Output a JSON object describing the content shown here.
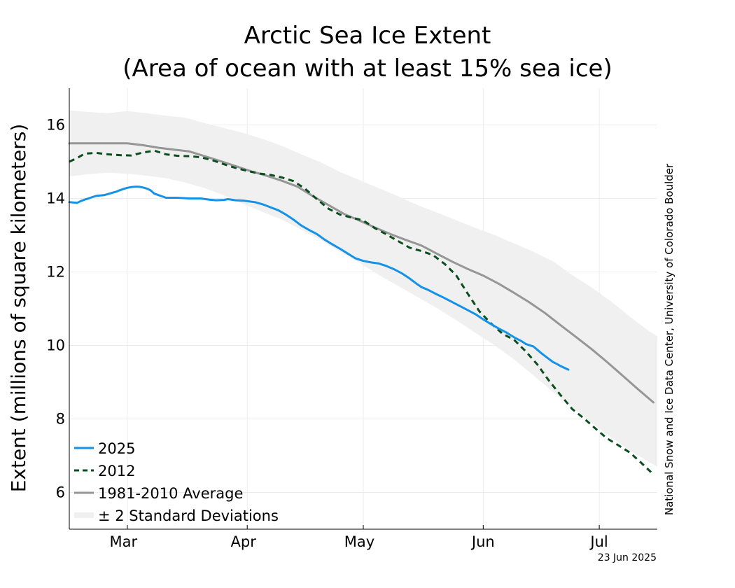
{
  "chart_data": {
    "type": "line",
    "title": [
      "Arctic Sea Ice Extent",
      "(Area of ocean with at least 15% sea ice)"
    ],
    "ylabel": "Extent (millions of square kilometers)",
    "ylim": [
      5,
      17
    ],
    "yticks": [
      6,
      8,
      10,
      12,
      14,
      16
    ],
    "x_unit": "day of year",
    "xlim": [
      45,
      197
    ],
    "month_starts": [
      60,
      91,
      121,
      152,
      182
    ],
    "month_labels": [
      "Mar",
      "Apr",
      "May",
      "Jun",
      "Jul"
    ],
    "month_label_days": [
      59,
      90,
      120,
      152,
      182
    ],
    "grid": true,
    "legend_position": "lower-left",
    "series": [
      {
        "name": "2025",
        "style": "solid",
        "color": "#1492e8",
        "x": [
          45,
          46,
          47,
          48,
          49,
          50,
          51,
          52,
          53,
          54,
          55,
          56,
          57,
          58,
          59,
          60,
          61,
          62,
          63,
          64,
          65,
          66,
          67,
          70,
          73,
          76,
          77,
          79,
          81,
          83,
          85,
          86,
          88,
          90,
          93,
          95,
          97,
          99,
          101,
          103,
          105,
          107,
          109,
          111,
          113,
          115,
          117,
          119,
          121,
          123,
          125,
          127,
          129,
          131,
          133,
          135,
          136,
          138,
          140,
          142,
          144,
          146,
          148,
          150,
          152,
          154,
          156,
          158,
          160,
          162,
          163,
          165,
          166,
          167,
          168,
          169,
          170,
          171,
          172,
          173,
          174
        ],
        "y": [
          13.9,
          13.89,
          13.88,
          13.93,
          13.97,
          14.0,
          14.04,
          14.07,
          14.08,
          14.09,
          14.12,
          14.15,
          14.18,
          14.22,
          14.26,
          14.29,
          14.31,
          14.32,
          14.32,
          14.3,
          14.27,
          14.22,
          14.13,
          14.02,
          14.02,
          14.0,
          14.0,
          14.0,
          13.97,
          13.95,
          13.96,
          13.98,
          13.95,
          13.94,
          13.9,
          13.84,
          13.76,
          13.68,
          13.56,
          13.42,
          13.26,
          13.14,
          13.03,
          12.88,
          12.75,
          12.63,
          12.5,
          12.37,
          12.3,
          12.26,
          12.23,
          12.16,
          12.07,
          11.96,
          11.82,
          11.66,
          11.59,
          11.5,
          11.39,
          11.29,
          11.18,
          11.07,
          10.96,
          10.85,
          10.71,
          10.58,
          10.46,
          10.35,
          10.22,
          10.11,
          10.04,
          9.97,
          9.88,
          9.79,
          9.71,
          9.63,
          9.55,
          9.5,
          9.44,
          9.39,
          9.34
        ],
        "gap_x": [
          122,
          125
        ]
      },
      {
        "name": "2012",
        "style": "dashed",
        "color": "#0a4d1e",
        "x": [
          45,
          47,
          49,
          52,
          55,
          58,
          61,
          64,
          67,
          70,
          73,
          76,
          79,
          82,
          85,
          88,
          91,
          94,
          97,
          100,
          103,
          106,
          109,
          112,
          115,
          118,
          121,
          124,
          127,
          130,
          133,
          136,
          139,
          142,
          145,
          148,
          151,
          154,
          157,
          160,
          163,
          166,
          169,
          172,
          175,
          178,
          181,
          184,
          187,
          190,
          193,
          196
        ],
        "y": [
          15.0,
          15.1,
          15.22,
          15.24,
          15.2,
          15.18,
          15.17,
          15.25,
          15.3,
          15.2,
          15.16,
          15.15,
          15.12,
          15.04,
          14.93,
          14.83,
          14.75,
          14.68,
          14.64,
          14.57,
          14.47,
          14.26,
          13.98,
          13.72,
          13.56,
          13.48,
          13.4,
          13.19,
          13.02,
          12.84,
          12.66,
          12.57,
          12.46,
          12.22,
          11.91,
          11.41,
          10.93,
          10.6,
          10.32,
          10.15,
          9.84,
          9.48,
          9.04,
          8.65,
          8.27,
          8.02,
          7.74,
          7.47,
          7.28,
          7.08,
          6.79,
          6.49
        ]
      },
      {
        "name": "1981-2010 Average",
        "style": "solid",
        "color": "#969696",
        "x": [
          45,
          48,
          52,
          56,
          60,
          64,
          68,
          72,
          76,
          80,
          84,
          88,
          92,
          96,
          100,
          104,
          108,
          112,
          116,
          120,
          124,
          128,
          132,
          136,
          140,
          144,
          148,
          152,
          156,
          160,
          164,
          168,
          172,
          176,
          180,
          184,
          188,
          192,
          196
        ],
        "y": [
          15.5,
          15.5,
          15.5,
          15.5,
          15.5,
          15.45,
          15.38,
          15.33,
          15.28,
          15.15,
          15.02,
          14.88,
          14.74,
          14.62,
          14.48,
          14.32,
          14.06,
          13.82,
          13.58,
          13.4,
          13.21,
          13.03,
          12.87,
          12.72,
          12.5,
          12.28,
          12.08,
          11.9,
          11.68,
          11.43,
          11.17,
          10.88,
          10.55,
          10.23,
          9.9,
          9.55,
          9.18,
          8.81,
          8.45
        ]
      },
      {
        "name": "± 2 Standard Deviations",
        "style": "band",
        "color": "#f0f0f0",
        "x": [
          45,
          50,
          55,
          60,
          65,
          70,
          75,
          80,
          85,
          90,
          95,
          100,
          105,
          110,
          115,
          120,
          125,
          130,
          135,
          140,
          145,
          150,
          155,
          160,
          165,
          170,
          175,
          180,
          185,
          190,
          195,
          197
        ],
        "upper": [
          16.4,
          16.35,
          16.32,
          16.38,
          16.32,
          16.25,
          16.2,
          16.05,
          15.92,
          15.78,
          15.62,
          15.43,
          15.2,
          14.98,
          14.72,
          14.5,
          14.28,
          14.06,
          13.82,
          13.62,
          13.41,
          13.2,
          13.0,
          12.78,
          12.55,
          12.29,
          11.92,
          11.58,
          11.2,
          10.78,
          10.38,
          10.25
        ],
        "lower": [
          14.6,
          14.66,
          14.7,
          14.67,
          14.62,
          14.55,
          14.43,
          14.28,
          14.08,
          13.85,
          13.63,
          13.42,
          13.15,
          12.87,
          12.55,
          12.25,
          11.92,
          11.62,
          11.32,
          11.02,
          10.69,
          10.34,
          10.0,
          9.62,
          9.18,
          8.74,
          8.31,
          7.9,
          7.5,
          7.13,
          6.82,
          6.7
        ]
      }
    ],
    "legend": [
      {
        "label": "2025",
        "style": "solid",
        "color": "#1492e8"
      },
      {
        "label": "2012",
        "style": "dashed",
        "color": "#0a4d1e"
      },
      {
        "label": "1981-2010 Average",
        "style": "solid",
        "color": "#969696"
      },
      {
        "label": "± 2 Standard Deviations",
        "style": "band",
        "color": "#f0f0f0"
      }
    ],
    "credit": "National Snow and Ice Data Center, University of Colorado Boulder",
    "date_stamp": "23 Jun 2025"
  }
}
